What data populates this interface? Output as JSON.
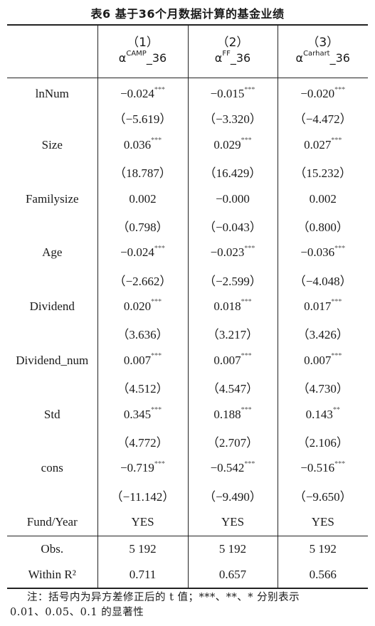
{
  "title": "表6   基于36个月数据计算的基金业绩",
  "columns": [
    {
      "num": "（1）",
      "alpha": "α",
      "sup": "CAMP",
      "suffix": "_36"
    },
    {
      "num": "（2）",
      "alpha": "α",
      "sup": "FF",
      "suffix": "_36"
    },
    {
      "num": "（3）",
      "alpha": "α",
      "sup": "Carhart",
      "suffix": "_36"
    }
  ],
  "rows": [
    {
      "label": "lnNum",
      "v": [
        "−0.024",
        "−0.015",
        "−0.020"
      ],
      "s": [
        "***",
        "***",
        "***"
      ],
      "t": [
        "（−5.619）",
        "（−3.320）",
        "（−4.472）"
      ]
    },
    {
      "label": "Size",
      "v": [
        "0.036",
        "0.029",
        "0.027"
      ],
      "s": [
        "***",
        "***",
        "***"
      ],
      "t": [
        "（18.787）",
        "（16.429）",
        "（15.232）"
      ]
    },
    {
      "label": "Familysize",
      "v": [
        "0.002",
        "−0.000",
        "0.002"
      ],
      "s": [
        "",
        "",
        ""
      ],
      "t": [
        "（0.798）",
        "（−0.043）",
        "（0.800）"
      ]
    },
    {
      "label": "Age",
      "v": [
        "−0.024",
        "−0.023",
        "−0.036"
      ],
      "s": [
        "***",
        "***",
        "***"
      ],
      "t": [
        "（−2.662）",
        "（−2.599）",
        "（−4.048）"
      ]
    },
    {
      "label": "Dividend",
      "v": [
        "0.020",
        "0.018",
        "0.017"
      ],
      "s": [
        "***",
        "***",
        "***"
      ],
      "t": [
        "（3.636）",
        "（3.217）",
        "（3.426）"
      ]
    },
    {
      "label": "Dividend_num",
      "v": [
        "0.007",
        "0.007",
        "0.007"
      ],
      "s": [
        "***",
        "***",
        "***"
      ],
      "t": [
        "（4.512）",
        "（4.547）",
        "（4.730）"
      ]
    },
    {
      "label": "Std",
      "v": [
        "0.345",
        "0.188",
        "0.143"
      ],
      "s": [
        "***",
        "***",
        "**"
      ],
      "t": [
        "（4.772）",
        "（2.707）",
        "（2.106）"
      ]
    },
    {
      "label": "cons",
      "v": [
        "−0.719",
        "−0.542",
        "−0.516"
      ],
      "s": [
        "***",
        "***",
        "***"
      ],
      "t": [
        "（−11.142）",
        "（−9.490）",
        "（−9.650）"
      ]
    }
  ],
  "fund_year": {
    "label": "Fund/Year",
    "v": [
      "YES",
      "YES",
      "YES"
    ]
  },
  "obs": {
    "label": "Obs.",
    "v": [
      "5 192",
      "5 192",
      "5 192"
    ]
  },
  "within_r2": {
    "label": "Within R²",
    "v": [
      "0.711",
      "0.657",
      "0.566"
    ]
  },
  "note": {
    "line1": "注：括号内为异方差修正后的 t 值；***、**、* 分别表示",
    "line2": "0.01、0.05、0.1 的显著性"
  }
}
